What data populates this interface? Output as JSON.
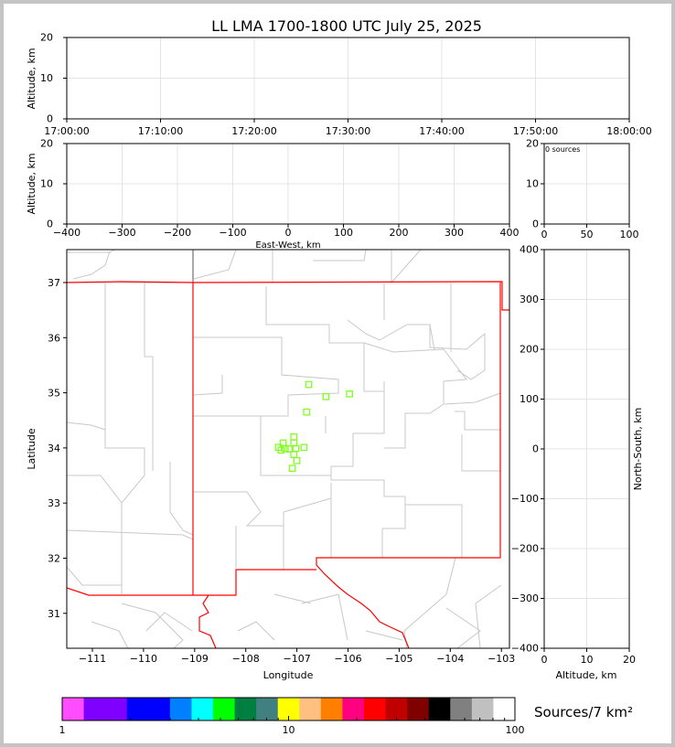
{
  "chart_data": [
    {
      "type": "scatter",
      "panel": "time-altitude",
      "title": "LL LMA 1700-1800 UTC July 25, 2025",
      "xlabel": "",
      "ylabel": "Altitude, km",
      "xlim": [
        "17:00:00",
        "18:00:00"
      ],
      "ylim": [
        0,
        20
      ],
      "xticks": [
        "17:00:00",
        "17:10:00",
        "17:20:00",
        "17:30:00",
        "17:40:00",
        "17:50:00",
        "18:00:00"
      ],
      "yticks": [
        "0",
        "10",
        "20"
      ],
      "grid": true,
      "points": []
    },
    {
      "type": "scatter",
      "panel": "eastwest-altitude",
      "xlabel": "East-West, km",
      "ylabel": "Altitude, km",
      "xlim": [
        -400,
        400
      ],
      "ylim": [
        0,
        20
      ],
      "xticks": [
        "−400",
        "−300",
        "−200",
        "−100",
        "0",
        "100",
        "200",
        "300",
        "400"
      ],
      "yticks": [
        "0",
        "10",
        "20"
      ],
      "grid": true,
      "points": []
    },
    {
      "type": "histogram",
      "panel": "altitude-count",
      "annotation": "0 sources",
      "xlim": [
        0,
        100
      ],
      "ylim": [
        0,
        20
      ],
      "xticks": [
        "0",
        "50",
        "100"
      ],
      "yticks": [
        "0",
        "10",
        "20"
      ],
      "grid": true
    },
    {
      "type": "scatter",
      "panel": "plan-view-map",
      "xlabel": "Longitude",
      "ylabel": "Latitude",
      "xlim": [
        -111.5,
        -102.84
      ],
      "ylim": [
        30.37,
        37.6
      ],
      "xticks": [
        "−111",
        "−110",
        "−109",
        "−108",
        "−107",
        "−106",
        "−105",
        "−104",
        "−103"
      ],
      "yticks": [
        "31",
        "32",
        "33",
        "34",
        "35",
        "36",
        "37"
      ],
      "marker": "square",
      "marker_color": "#80ff20",
      "points": [
        {
          "lon": -106.77,
          "lat": 35.15
        },
        {
          "lon": -106.43,
          "lat": 34.93
        },
        {
          "lon": -105.97,
          "lat": 34.98
        },
        {
          "lon": -106.81,
          "lat": 34.65
        },
        {
          "lon": -107.06,
          "lat": 34.2
        },
        {
          "lon": -107.27,
          "lat": 34.09
        },
        {
          "lon": -107.06,
          "lat": 34.09
        },
        {
          "lon": -107.36,
          "lat": 34.01
        },
        {
          "lon": -107.31,
          "lat": 33.96
        },
        {
          "lon": -107.23,
          "lat": 33.99
        },
        {
          "lon": -107.15,
          "lat": 33.98
        },
        {
          "lon": -107.02,
          "lat": 33.99
        },
        {
          "lon": -106.86,
          "lat": 34.01
        },
        {
          "lon": -107.06,
          "lat": 33.88
        },
        {
          "lon": -107.0,
          "lat": 33.77
        },
        {
          "lon": -107.09,
          "lat": 33.63
        }
      ]
    },
    {
      "type": "scatter",
      "panel": "altitude-northsouth",
      "xlabel": "Altitude, km",
      "ylabel": "North-South, km",
      "xlim": [
        0,
        20
      ],
      "ylim": [
        -400,
        400
      ],
      "xticks": [
        "0",
        "10",
        "20"
      ],
      "yticks": [
        "−400",
        "−300",
        "−200",
        "−100",
        "0",
        "100",
        "200",
        "300",
        "400"
      ],
      "grid": true,
      "points": []
    }
  ],
  "colorbar": {
    "label": "Sources/7 km²",
    "scale": "log",
    "range": [
      1,
      100
    ],
    "ticks": [
      "1",
      "10",
      "100"
    ],
    "colors": [
      "#ff4dff",
      "#8000ff",
      "#0000ff",
      "#0080ff",
      "#00ffff",
      "#00ff00",
      "#008040",
      "#408080",
      "#ffff00",
      "#ffc080",
      "#ff8000",
      "#ff0080",
      "#ff0000",
      "#c00000",
      "#800000",
      "#000000",
      "#808080",
      "#c0c0c0",
      "#ffffff"
    ]
  },
  "map_colors": {
    "state_border": "#ff0000",
    "county_lines": "#c8c8c8"
  }
}
